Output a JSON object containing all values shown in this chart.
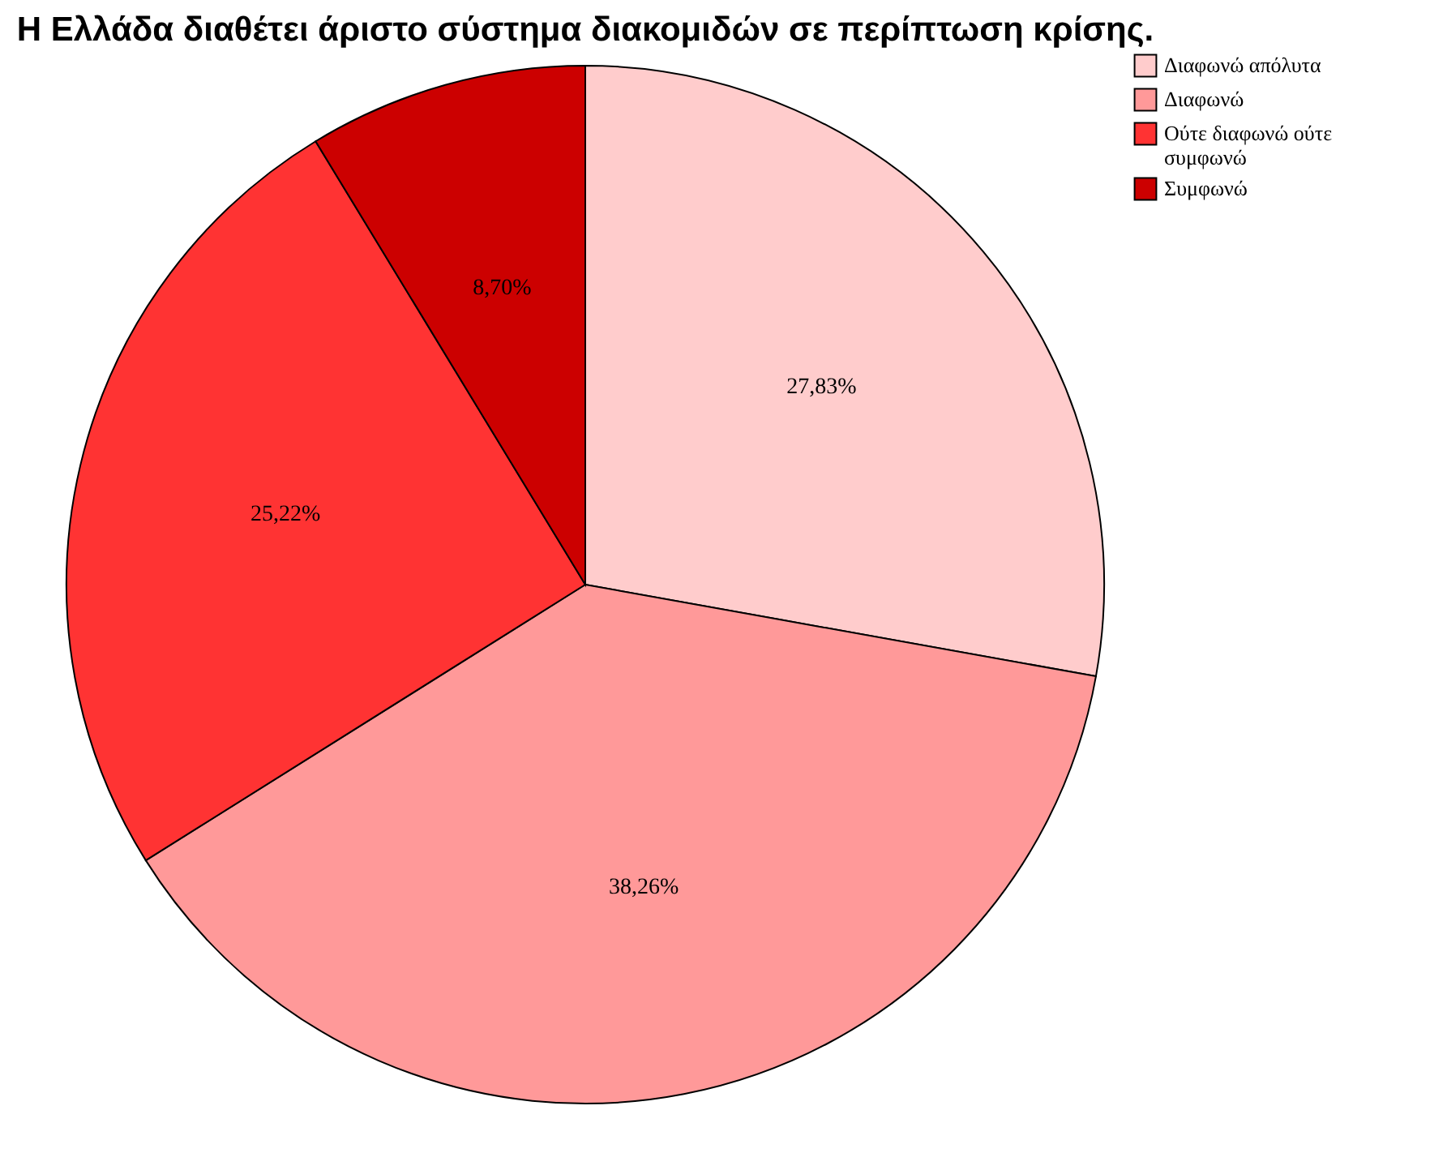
{
  "chart_data": {
    "type": "pie",
    "title": "Η Ελλάδα διαθέτει άριστο σύστημα διακομιδών σε περίπτωση κρίσης.",
    "categories": [
      "Διαφωνώ απόλυτα",
      "Διαφωνώ",
      "Ούτε διαφωνώ ούτε συμφωνώ",
      "Συμφωνώ"
    ],
    "values": [
      27.83,
      38.26,
      25.22,
      8.7
    ],
    "value_labels": [
      "27,83%",
      "38,26%",
      "25,22%",
      "8,70%"
    ],
    "colors": [
      "#ffcccc",
      "#ff9999",
      "#ff3333",
      "#cc0000"
    ],
    "legend": "top right"
  }
}
